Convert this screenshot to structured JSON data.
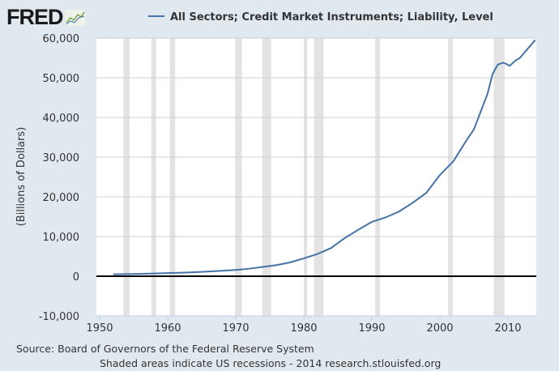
{
  "logo": {
    "text": "FRED"
  },
  "chart_data": {
    "type": "line",
    "title": "",
    "xlabel": "",
    "ylabel": "(Billions of Dollars)",
    "xlim": [
      1950,
      2014
    ],
    "ylim": [
      -10000,
      60000
    ],
    "grid": true,
    "legend": "top-center",
    "series_color": "#4572a7",
    "x_ticks": [
      "1950",
      "1960",
      "1970",
      "1980",
      "1990",
      "2000",
      "2010"
    ],
    "y_ticks": [
      "-10,000",
      "0",
      "10,000",
      "20,000",
      "30,000",
      "40,000",
      "50,000",
      "60,000"
    ],
    "series": [
      {
        "name": "All Sectors; Credit Market Instruments; Liability, Level",
        "x": [
          1952,
          1955,
          1958,
          1960,
          1963,
          1965,
          1968,
          1970,
          1972,
          1974,
          1976,
          1978,
          1980,
          1982,
          1984,
          1986,
          1988,
          1990,
          1992,
          1994,
          1996,
          1998,
          2000,
          2002,
          2004,
          2005,
          2006,
          2007,
          2007.75,
          2008.5,
          2009.25,
          2009.75,
          2010.25,
          2011,
          2011.75,
          2012.5,
          2013.25,
          2014
        ],
        "y": [
          480,
          560,
          680,
          780,
          950,
          1100,
          1380,
          1580,
          1900,
          2350,
          2800,
          3500,
          4500,
          5600,
          7100,
          9600,
          11700,
          13700,
          14800,
          16300,
          18500,
          21000,
          25500,
          29000,
          34500,
          37000,
          41500,
          46000,
          51000,
          53300,
          53800,
          53500,
          53000,
          54200,
          55000,
          56500,
          58000,
          59500
        ]
      }
    ],
    "recessions": [
      [
        1953.5,
        1954.4
      ],
      [
        1957.6,
        1958.3
      ],
      [
        1960.3,
        1961.1
      ],
      [
        1969.9,
        1970.9
      ],
      [
        1973.9,
        1975.2
      ],
      [
        1980.0,
        1980.5
      ],
      [
        1981.5,
        1982.9
      ],
      [
        1990.5,
        1991.2
      ],
      [
        2001.2,
        2001.9
      ],
      [
        2007.9,
        2009.5
      ]
    ]
  },
  "footer": {
    "source": "Source: Board of Governors of the Federal Reserve System",
    "note": "Shaded areas indicate US recessions - 2014 research.stlouisfed.org"
  }
}
